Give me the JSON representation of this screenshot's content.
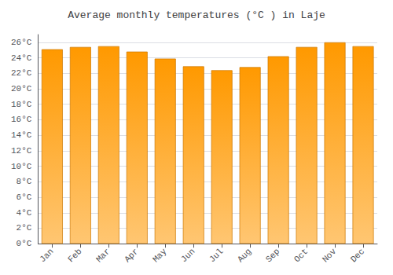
{
  "chart_data": {
    "type": "bar",
    "title": "Average monthly temperatures (°C ) in Laje",
    "categories": [
      "Jan",
      "Feb",
      "Mar",
      "Apr",
      "May",
      "Jun",
      "Jul",
      "Aug",
      "Sep",
      "Oct",
      "Nov",
      "Dec"
    ],
    "values": [
      25.1,
      25.4,
      25.5,
      24.8,
      23.9,
      22.9,
      22.4,
      22.8,
      24.2,
      25.4,
      26.0,
      25.5
    ],
    "color": "#FF9900",
    "ylim": [
      0,
      27
    ],
    "yticks": [
      {
        "value": 0,
        "label": "0°C"
      },
      {
        "value": 2,
        "label": "2°C"
      },
      {
        "value": 4,
        "label": "4°C"
      },
      {
        "value": 6,
        "label": "6°C"
      },
      {
        "value": 8,
        "label": "8°C"
      },
      {
        "value": 10,
        "label": "10°C"
      },
      {
        "value": 12,
        "label": "12°C"
      },
      {
        "value": 14,
        "label": "14°C"
      },
      {
        "value": 16,
        "label": "16°C"
      },
      {
        "value": 18,
        "label": "18°C"
      },
      {
        "value": 20,
        "label": "20°C"
      },
      {
        "value": 22,
        "label": "22°C"
      },
      {
        "value": 24,
        "label": "24°C"
      },
      {
        "value": 26,
        "label": "26°C"
      }
    ],
    "grid": true
  }
}
